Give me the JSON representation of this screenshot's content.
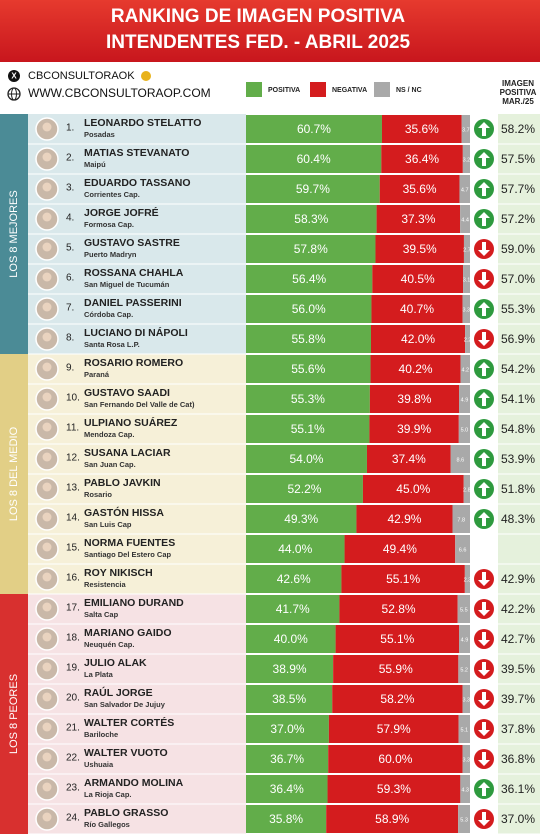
{
  "chart_data": {
    "type": "bar",
    "orientation": "horizontal",
    "stacked": true,
    "title_lines": [
      "RANKING DE IMAGEN POSITIVA",
      "INTENDENTES FED. - ABRIL 2025"
    ],
    "account": "CBCONSULTORAOK",
    "website": "WWW.CBCONSULTORAOP.COM",
    "previous_header": [
      "IMAGEN",
      "POSITIVA",
      "MAR./25"
    ],
    "groups": [
      {
        "label": "LOS 8 MEJORES",
        "color": "#4b8b96",
        "tint": "#d9e8eb"
      },
      {
        "label": "LOS 8 DEL MEDIO",
        "color": "#e2cf86",
        "tint": "#f6f0d8"
      },
      {
        "label": "LOS 8 PEORES",
        "color": "#d8302f",
        "tint": "#f6e2e4"
      }
    ],
    "ranks": [
      "1.",
      "2.",
      "3.",
      "4.",
      "5.",
      "6.",
      "7.",
      "8.",
      "9.",
      "10.",
      "11.",
      "12.",
      "13.",
      "14.",
      "15.",
      "16.",
      "17.",
      "18.",
      "19.",
      "20.",
      "21.",
      "22.",
      "23.",
      "24."
    ],
    "categories": [
      "LEONARDO STELATTO",
      "MATIAS STEVANATO",
      "EDUARDO TASSANO",
      "JORGE JOFRÉ",
      "GUSTAVO SASTRE",
      "ROSSANA CHAHLA",
      "DANIEL PASSERINI",
      "LUCIANO DI NÁPOLI",
      "ROSARIO ROMERO",
      "GUSTAVO SAADI",
      "ULPIANO SUÁREZ",
      "SUSANA LACIAR",
      "PABLO JAVKIN",
      "GASTÓN HISSA",
      "NORMA FUENTES",
      "ROY NIKISCH",
      "EMILIANO DURAND",
      "MARIANO GAIDO",
      "JULIO ALAK",
      "RAÚL JORGE",
      "WALTER CORTÉS",
      "WALTER VUOTO",
      "ARMANDO MOLINA",
      "PABLO GRASSO"
    ],
    "cities": [
      "Posadas",
      "Maipú",
      "Corrientes Cap.",
      "Formosa Cap.",
      "Puerto Madryn",
      "San Miguel de Tucumán",
      "Córdoba Cap.",
      "Santa Rosa L.P.",
      "Paraná",
      "San Fernando Del Valle de Cat)",
      "Mendoza Cap.",
      "San Juan Cap.",
      "Rosario",
      "San Luis Cap",
      "Santiago Del Estero Cap",
      "Resistencia",
      "Salta Cap",
      "Neuquén Cap.",
      "La Plata",
      "San Salvador De Jujuy",
      "Bariloche",
      "Ushuaia",
      "La Rioja Cap.",
      "Río Gallegos"
    ],
    "xlim": [
      0,
      100
    ],
    "series": [
      {
        "name": "POSITIVA",
        "color": "#62ad4a",
        "values": [
          60.7,
          60.4,
          59.7,
          58.3,
          57.8,
          56.4,
          56.0,
          55.8,
          55.6,
          55.3,
          55.1,
          54.0,
          52.2,
          49.3,
          44.0,
          42.6,
          41.7,
          40.0,
          38.9,
          38.5,
          37.0,
          36.7,
          36.4,
          35.8
        ],
        "value_labels": [
          "60.7%",
          "60.4%",
          "59.7%",
          "58.3%",
          "57.8%",
          "56.4%",
          "56.0%",
          "55.8%",
          "55.6%",
          "55.3%",
          "55.1%",
          "54.0%",
          "52.2%",
          "49.3%",
          "44.0%",
          "42.6%",
          "41.7%",
          "40.0%",
          "38.9%",
          "38.5%",
          "37.0%",
          "36.7%",
          "36.4%",
          "35.8%"
        ]
      },
      {
        "name": "NEGATIVA",
        "color": "#d41c1e",
        "values": [
          35.6,
          36.4,
          35.6,
          37.3,
          39.5,
          40.5,
          40.7,
          42.0,
          40.2,
          39.8,
          39.9,
          37.4,
          45.0,
          42.9,
          49.4,
          55.1,
          52.8,
          55.1,
          55.9,
          58.2,
          57.9,
          60.0,
          59.3,
          58.9
        ],
        "value_labels": [
          "35.6%",
          "36.4%",
          "35.6%",
          "37.3%",
          "39.5%",
          "40.5%",
          "40.7%",
          "42.0%",
          "40.2%",
          "39.8%",
          "39.9%",
          "37.4%",
          "45.0%",
          "42.9%",
          "49.4%",
          "55.1%",
          "52.8%",
          "55.1%",
          "55.9%",
          "58.2%",
          "57.9%",
          "60.0%",
          "59.3%",
          "58.9%"
        ]
      },
      {
        "name": "NS / NC",
        "color": "#a9a9a9",
        "values": [
          3.7,
          3.2,
          4.7,
          4.4,
          2.7,
          3.1,
          3.3,
          2.2,
          4.2,
          4.9,
          5.0,
          8.6,
          2.8,
          7.8,
          6.6,
          2.3,
          5.5,
          4.9,
          5.2,
          3.3,
          5.1,
          3.3,
          4.3,
          5.3
        ],
        "value_labels": [
          "3.7",
          "3.2",
          "4.7",
          "4.4",
          "2.7",
          "3.1",
          "3.3",
          "2.2",
          "4.2",
          "4.9",
          "5.0",
          "8.6",
          "2.8",
          "7.8",
          "6.6",
          "2.3",
          "5.5",
          "4.9",
          "5.2",
          "3.3",
          "5.1",
          "3.3",
          "4.3",
          "5.3"
        ]
      }
    ],
    "previous": {
      "values": [
        58.2,
        57.5,
        57.7,
        57.2,
        59.0,
        57.0,
        55.3,
        56.9,
        54.2,
        54.1,
        54.8,
        53.9,
        51.8,
        48.3,
        null,
        42.9,
        42.2,
        42.7,
        39.5,
        39.7,
        37.8,
        36.8,
        36.1,
        37.0
      ],
      "value_labels": [
        "58.2%",
        "57.5%",
        "57.7%",
        "57.2%",
        "59.0%",
        "57.0%",
        "55.3%",
        "56.9%",
        "54.2%",
        "54.1%",
        "54.8%",
        "53.9%",
        "51.8%",
        "48.3%",
        null,
        "42.9%",
        "42.2%",
        "42.7%",
        "39.5%",
        "39.7%",
        "37.8%",
        "36.8%",
        "36.1%",
        "37.0%"
      ],
      "up_color": "#2e9a3e",
      "down_color": "#d41c1e",
      "tint": "#e5f1dc"
    }
  }
}
